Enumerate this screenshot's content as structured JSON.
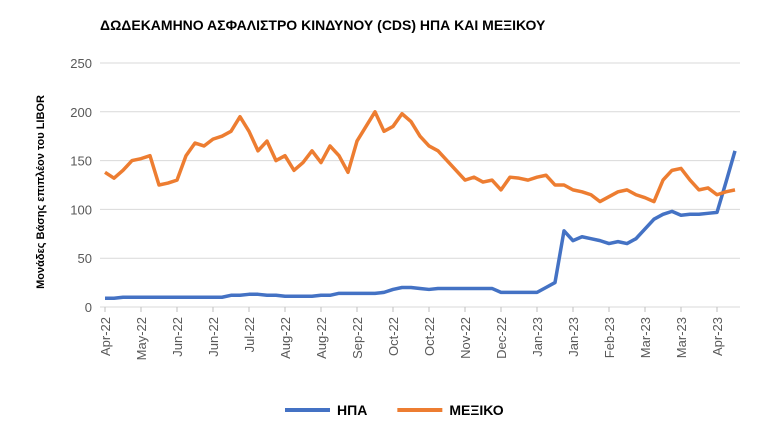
{
  "chart_data": {
    "type": "line",
    "title": "ΔΩΔΕΚΑΜΗΝΟ ΑΣΦΑΛΙΣΤΡΟ ΚΙΝΔΥΝΟΥ (CDS)  ΗΠΑ ΚΑΙ ΜΕΞΙΚΟΥ",
    "y_label": "Μονάδες Βάσης επιπλέον του LIBOR",
    "categories": [
      "Apr-22",
      null,
      null,
      null,
      "May-22",
      null,
      null,
      null,
      "Jun-22",
      null,
      null,
      null,
      "Jun-22",
      null,
      null,
      null,
      "Jul-22",
      null,
      null,
      null,
      "Aug-22",
      null,
      null,
      null,
      "Aug-22",
      null,
      null,
      null,
      "Sep-22",
      null,
      null,
      null,
      "Oct-22",
      null,
      null,
      null,
      "Oct-22",
      null,
      null,
      null,
      "Nov-22",
      null,
      null,
      null,
      "Dec-22",
      null,
      null,
      null,
      "Jan-23",
      null,
      null,
      null,
      "Jan-23",
      null,
      null,
      null,
      "Feb-23",
      null,
      null,
      null,
      "Mar-23",
      null,
      null,
      null,
      "Mar-23",
      null,
      null,
      null,
      "Apr-23",
      null,
      null
    ],
    "series": [
      {
        "name": "ΗΠΑ",
        "color": "#4472c4",
        "values": [
          9,
          9,
          10,
          10,
          10,
          10,
          10,
          10,
          10,
          10,
          10,
          10,
          10,
          10,
          12,
          12,
          13,
          13,
          12,
          12,
          11,
          11,
          11,
          11,
          12,
          12,
          14,
          14,
          14,
          14,
          14,
          15,
          18,
          20,
          20,
          19,
          18,
          19,
          19,
          19,
          19,
          19,
          19,
          19,
          15,
          15,
          15,
          15,
          15,
          20,
          25,
          78,
          68,
          72,
          70,
          68,
          65,
          67,
          65,
          70,
          80,
          90,
          95,
          98,
          94,
          95,
          95,
          96,
          97,
          128,
          160
        ]
      },
      {
        "name": "ΜΕΞΙΚΟ",
        "color": "#ed7d31",
        "values": [
          138,
          132,
          140,
          150,
          152,
          155,
          125,
          127,
          130,
          155,
          168,
          165,
          172,
          175,
          180,
          195,
          180,
          160,
          170,
          150,
          155,
          140,
          148,
          160,
          148,
          165,
          155,
          138,
          170,
          185,
          200,
          180,
          185,
          198,
          190,
          175,
          165,
          160,
          150,
          140,
          130,
          133,
          128,
          130,
          120,
          133,
          132,
          130,
          133,
          135,
          125,
          125,
          120,
          118,
          115,
          108,
          113,
          118,
          120,
          115,
          112,
          108,
          130,
          140,
          142,
          130,
          120,
          122,
          115,
          118,
          120
        ]
      }
    ],
    "ylim": [
      0,
      250
    ],
    "yticks": [
      0,
      50,
      100,
      150,
      200,
      250
    ],
    "grid": true,
    "legend": "bottom"
  }
}
